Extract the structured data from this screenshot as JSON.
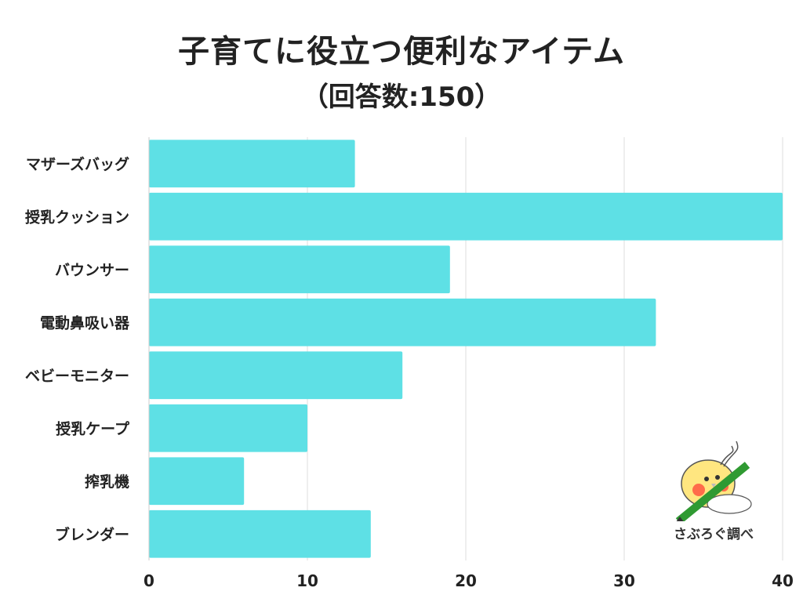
{
  "title": "子育てに役立つ便利なアイテム",
  "subtitle": "（回答数:150）",
  "credit": "さぶろぐ調べ",
  "colors": {
    "bar": "#5ee0e5",
    "grid": "#dddddd",
    "text": "#222222"
  },
  "chart_data": {
    "type": "bar",
    "orientation": "horizontal",
    "categories": [
      "マザーズバッグ",
      "授乳クッション",
      "バウンサー",
      "電動鼻吸い器",
      "ベビーモニター",
      "授乳ケープ",
      "搾乳機",
      "ブレンダー"
    ],
    "values": [
      13,
      40,
      19,
      32,
      16,
      10,
      6,
      14
    ],
    "xlim": [
      0,
      40
    ],
    "xticks": [
      0,
      10,
      20,
      30,
      40
    ],
    "grid": true,
    "title": "子育てに役立つ便利なアイテム",
    "subtitle": "（回答数:150）"
  }
}
